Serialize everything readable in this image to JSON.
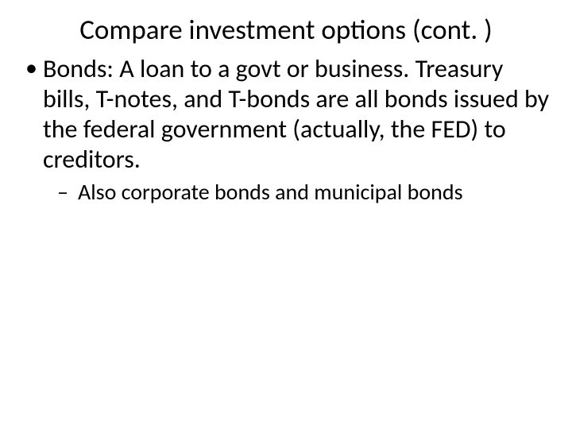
{
  "slide": {
    "title": "Compare investment options (cont. )",
    "bullets": [
      {
        "text": "Bonds: A loan to a govt or business. Treasury bills, T-notes, and T-bonds are all bonds issued by the federal government (actually, the FED) to creditors.",
        "sub": [
          "Also corporate bonds and municipal bonds"
        ]
      }
    ]
  },
  "style": {
    "background_color": "#ffffff",
    "text_color": "#000000",
    "font_family": "Calibri",
    "title_fontsize": 35,
    "body_fontsize": 32,
    "sub_fontsize": 28
  }
}
